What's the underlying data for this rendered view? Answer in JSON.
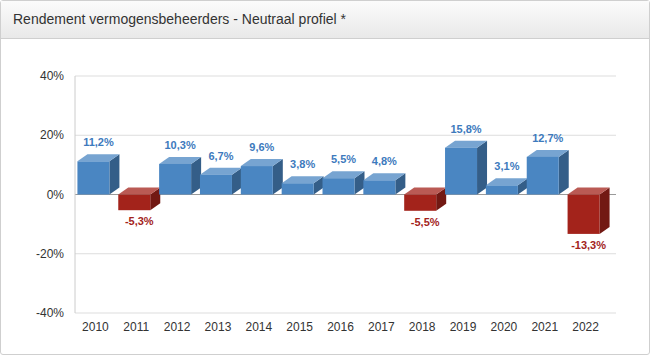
{
  "chart_data": {
    "type": "bar",
    "title": "Rendement vermogensbeheerders - Neutraal profiel *",
    "categories": [
      "2010",
      "2011",
      "2012",
      "2013",
      "2014",
      "2015",
      "2016",
      "2017",
      "2018",
      "2019",
      "2020",
      "2021",
      "2022"
    ],
    "values": [
      11.2,
      -5.3,
      10.3,
      6.7,
      9.6,
      3.8,
      5.5,
      4.8,
      -5.5,
      15.8,
      3.1,
      12.7,
      -13.3
    ],
    "value_labels": [
      "11,2%",
      "-5,3%",
      "10,3%",
      "6,7%",
      "9,6%",
      "3,8%",
      "5,5%",
      "4,8%",
      "-5,5%",
      "15,8%",
      "3,1%",
      "12,7%",
      "-13,3%"
    ],
    "colors": [
      "#4a86c2",
      "#a3231b",
      "#4a86c2",
      "#4a86c2",
      "#4a86c2",
      "#4a86c2",
      "#4a86c2",
      "#4a86c2",
      "#a3231b",
      "#4a86c2",
      "#4a86c2",
      "#4a86c2",
      "#a3231b"
    ],
    "ylim": [
      -40,
      40
    ],
    "yticks": [
      {
        "value": -40,
        "label": "-40%"
      },
      {
        "value": -20,
        "label": "-20%"
      },
      {
        "value": 0,
        "label": "0%"
      },
      {
        "value": 20,
        "label": "20%"
      },
      {
        "value": 40,
        "label": "40%"
      }
    ],
    "grid": true,
    "data_labels": true
  }
}
